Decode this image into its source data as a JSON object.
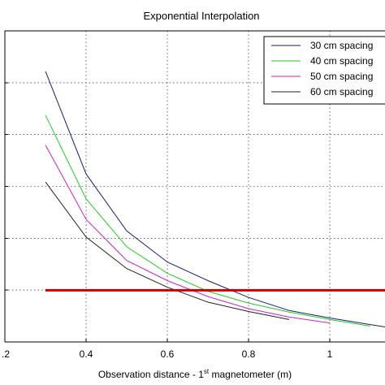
{
  "chart_data": {
    "type": "line",
    "title": "Exponential Interpolation",
    "xlabel_main": "Observation distance - 1",
    "xlabel_sup": "st",
    "xlabel_tail": " magnetometer (m)",
    "ylabel": "",
    "xlim": [
      0.2,
      1.16
    ],
    "ylim": [
      0,
      1
    ],
    "grid": true,
    "x_ticks": [
      0.2,
      0.4,
      0.6,
      0.8,
      1.0
    ],
    "x_tick_labels": [
      ".2",
      "0.4",
      "0.6",
      "0.8",
      "1"
    ],
    "y_gridlines": [
      0.167,
      0.333,
      0.5,
      0.667,
      0.833
    ],
    "legend_position": "top-right",
    "series": [
      {
        "name": "30 cm spacing",
        "color": "#1a1a80",
        "x": [
          0.3,
          0.4,
          0.5,
          0.6,
          0.7,
          0.8,
          0.9,
          1.0,
          1.1,
          1.16
        ],
        "y": [
          0.87,
          0.54,
          0.357,
          0.257,
          0.197,
          0.143,
          0.101,
          0.077,
          0.056,
          0.043
        ]
      },
      {
        "name": "40 cm spacing",
        "color": "#22cc22",
        "x": [
          0.3,
          0.4,
          0.5,
          0.6,
          0.7,
          0.8,
          0.9,
          1.0,
          1.1
        ],
        "y": [
          0.729,
          0.46,
          0.306,
          0.221,
          0.163,
          0.125,
          0.096,
          0.072,
          0.051
        ]
      },
      {
        "name": "50 cm spacing",
        "color": "#cc22cc",
        "x": [
          0.3,
          0.4,
          0.5,
          0.6,
          0.7,
          0.8,
          0.9,
          1.0
        ],
        "y": [
          0.633,
          0.394,
          0.262,
          0.197,
          0.146,
          0.107,
          0.08,
          0.061
        ]
      },
      {
        "name": "60 cm spacing",
        "color": "#222222",
        "x": [
          0.3,
          0.4,
          0.5,
          0.6,
          0.7,
          0.8,
          0.9
        ],
        "y": [
          0.514,
          0.337,
          0.236,
          0.176,
          0.128,
          0.098,
          0.072
        ]
      }
    ],
    "threshold": {
      "color": "#cc0000",
      "x": [
        0.3,
        1.16
      ],
      "y": 0.166
    }
  }
}
